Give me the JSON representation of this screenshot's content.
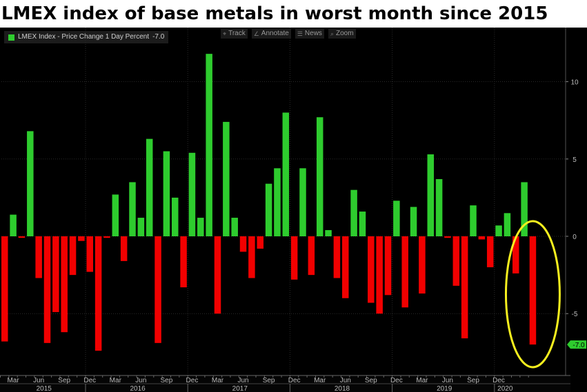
{
  "title": "LMEX index of base metals in worst month since 2015",
  "legend": {
    "label": "LMEX Index - Price Change 1 Day Percent",
    "value": "-7.0",
    "color": "#2ecc2e"
  },
  "toolbar": [
    {
      "label": "Track",
      "icon": "crosshair-icon",
      "glyph": "⌖"
    },
    {
      "label": "Annotate",
      "icon": "pencil-icon",
      "glyph": "∠"
    },
    {
      "label": "News",
      "icon": "news-icon",
      "glyph": "☰"
    },
    {
      "label": "Zoom",
      "icon": "zoom-icon",
      "glyph": "⌕"
    }
  ],
  "colors": {
    "positive": "#2ecc2e",
    "negative": "#f20000",
    "highlight": "#f7f01e",
    "grid": "#2a2a2a",
    "last_value": "#2ecc2e"
  },
  "last_value_label": "-7.0",
  "chart_data": {
    "type": "bar",
    "ylim": [
      -9,
      13.5
    ],
    "yticks": [
      -5,
      0,
      5,
      10
    ],
    "ytick_labels": [
      "-5",
      "0",
      "5",
      "10"
    ],
    "grid": true,
    "x_month_labels": [
      "Mar",
      "Jun",
      "Sep",
      "Dec",
      "Mar",
      "Jun",
      "Sep",
      "Dec",
      "Mar",
      "Jun",
      "Sep",
      "Dec",
      "Mar",
      "Jun",
      "Sep",
      "Dec",
      "Mar",
      "Jun",
      "Sep",
      "Dec"
    ],
    "x_year_labels": [
      "2015",
      "2016",
      "2017",
      "2018",
      "2019",
      "2020"
    ],
    "values": [
      -6.8,
      1.4,
      -0.1,
      6.8,
      -2.7,
      -6.9,
      -4.9,
      -6.2,
      -2.5,
      -0.3,
      -2.3,
      -7.4,
      -0.1,
      2.7,
      -1.6,
      3.5,
      1.2,
      6.3,
      -6.9,
      5.5,
      2.5,
      -3.3,
      5.4,
      1.2,
      11.8,
      -5.0,
      7.4,
      1.2,
      -1.0,
      -2.7,
      -0.8,
      3.4,
      4.4,
      8.0,
      -2.8,
      4.4,
      -2.5,
      7.7,
      0.4,
      -2.7,
      -4.0,
      3.0,
      1.6,
      -4.3,
      -5.0,
      -3.8,
      2.3,
      -4.6,
      1.9,
      -3.7,
      5.3,
      3.7,
      -0.1,
      -3.2,
      -6.6,
      2.0,
      -0.2,
      -2.0,
      0.7,
      1.5,
      -2.4,
      3.5,
      -7.0
    ],
    "highlight": {
      "shape": "ellipse",
      "target": "last bar"
    }
  }
}
